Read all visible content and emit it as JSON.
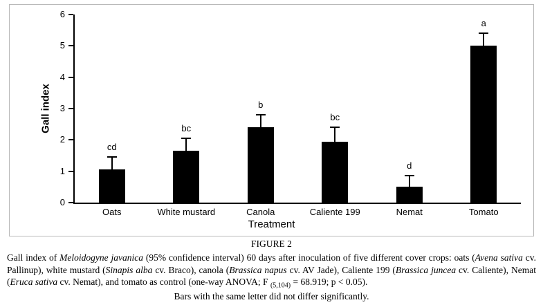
{
  "chart_data": {
    "type": "bar",
    "categories": [
      "Oats",
      "White mustard",
      "Canola",
      "Caliente 199",
      "Nemat",
      "Tomato"
    ],
    "values": [
      1.05,
      1.65,
      2.4,
      1.95,
      0.5,
      5.0
    ],
    "errors": [
      0.4,
      0.4,
      0.4,
      0.45,
      0.35,
      0.4
    ],
    "letters": [
      "cd",
      "bc",
      "b",
      "bc",
      "d",
      "a"
    ],
    "title": "",
    "xlabel": "Treatment",
    "ylabel": "Gall index",
    "ylim": [
      0,
      6
    ],
    "yticks": [
      0,
      1,
      2,
      3,
      4,
      5,
      6
    ],
    "bar_color": "#000000",
    "grid": false,
    "legend": "none"
  },
  "caption": {
    "figure_label": "FIGURE 2",
    "segments": [
      {
        "text": "Gall index of "
      },
      {
        "text": "Meloidogyne javanica",
        "italic": true
      },
      {
        "text": " (95% confidence interval) 60 days after inoculation of five different cover crops: oats ("
      },
      {
        "text": "Avena sativa",
        "italic": true
      },
      {
        "text": " cv. Pallinup), white mustard ("
      },
      {
        "text": "Sinapis alba",
        "italic": true
      },
      {
        "text": " cv. Braco), canola ("
      },
      {
        "text": "Brassica napus",
        "italic": true
      },
      {
        "text": " cv. AV Jade), Caliente 199 ("
      },
      {
        "text": "Brassica juncea",
        "italic": true
      },
      {
        "text": " cv. Caliente), Nemat ("
      },
      {
        "text": "Eruca sativa",
        "italic": true
      },
      {
        "text": " cv. Nemat), and tomato as control (one-way ANOVA; F "
      },
      {
        "text": "(5,104)",
        "sub": true
      },
      {
        "text": " = 68.919; p < 0.05)."
      }
    ],
    "note": "Bars with the same letter did not differ significantly."
  }
}
